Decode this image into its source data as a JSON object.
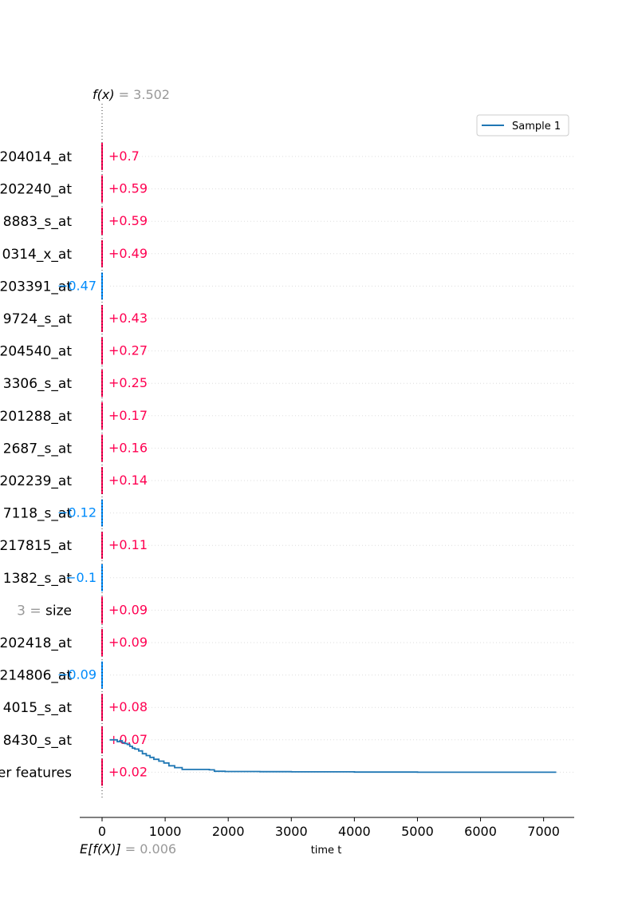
{
  "chart_data": {
    "type": "decision-waterfall",
    "output": {
      "label": "f(x)",
      "eq": " = ",
      "value": "3.502"
    },
    "base": {
      "label": "E[f(X)]",
      "eq": " = ",
      "value": "0.006"
    },
    "xlabel": "time t",
    "xlim": [
      -350,
      7500
    ],
    "xticks": [
      0,
      1000,
      2000,
      3000,
      4000,
      5000,
      6000,
      7000
    ],
    "xtick_labels": [
      "0",
      "1000",
      "2000",
      "3000",
      "4000",
      "5000",
      "6000",
      "7000"
    ],
    "grid": true,
    "legend": {
      "position": "top-right",
      "label": "Sample 1"
    },
    "colors": {
      "positive": "#ff0051",
      "negative": "#008bfb",
      "line": "#1f77b4",
      "muted": "#999999"
    },
    "features": [
      {
        "name": "204014_at",
        "value": "",
        "contrib": 0.7,
        "label": "+0.7"
      },
      {
        "name": "202240_at",
        "value": "",
        "contrib": 0.59,
        "label": "+0.59"
      },
      {
        "name": "8883_s_at",
        "value": "",
        "contrib": 0.59,
        "label": "+0.59"
      },
      {
        "name": "0314_x_at",
        "value": "",
        "contrib": 0.49,
        "label": "+0.49"
      },
      {
        "name": "203391_at",
        "value": "",
        "contrib": -0.47,
        "label": "−0.47"
      },
      {
        "name": "9724_s_at",
        "value": "",
        "contrib": 0.43,
        "label": "+0.43"
      },
      {
        "name": "204540_at",
        "value": "",
        "contrib": 0.27,
        "label": "+0.27"
      },
      {
        "name": "3306_s_at",
        "value": "",
        "contrib": 0.25,
        "label": "+0.25"
      },
      {
        "name": "201288_at",
        "value": "",
        "contrib": 0.17,
        "label": "+0.17"
      },
      {
        "name": "2687_s_at",
        "value": "",
        "contrib": 0.16,
        "label": "+0.16"
      },
      {
        "name": "202239_at",
        "value": "",
        "contrib": 0.14,
        "label": "+0.14"
      },
      {
        "name": "7118_s_at",
        "value": "",
        "contrib": -0.12,
        "label": "−0.12"
      },
      {
        "name": "217815_at",
        "value": "",
        "contrib": 0.11,
        "label": "+0.11"
      },
      {
        "name": "1382_s_at",
        "value": "",
        "contrib": -0.1,
        "label": "−0.1"
      },
      {
        "name": "size",
        "value": "3 = ",
        "contrib": 0.09,
        "label": "+0.09"
      },
      {
        "name": "202418_at",
        "value": "",
        "contrib": 0.09,
        "label": "+0.09"
      },
      {
        "name": "214806_at",
        "value": "",
        "contrib": -0.09,
        "label": "−0.09"
      },
      {
        "name": "4015_s_at",
        "value": "",
        "contrib": 0.08,
        "label": "+0.08"
      },
      {
        "name": "8430_s_at",
        "value": "",
        "contrib": 0.07,
        "label": "+0.07"
      },
      {
        "name": "er features",
        "value": "",
        "contrib": 0.02,
        "label": "+0.02"
      }
    ],
    "series": [
      {
        "name": "Sample 1",
        "points": [
          [
            120,
            1.0
          ],
          [
            200,
            1.0
          ],
          [
            240,
            0.99
          ],
          [
            280,
            0.995
          ],
          [
            320,
            0.985
          ],
          [
            360,
            0.98
          ],
          [
            400,
            0.975
          ],
          [
            440,
            0.965
          ],
          [
            480,
            0.955
          ],
          [
            520,
            0.95
          ],
          [
            580,
            0.94
          ],
          [
            640,
            0.925
          ],
          [
            700,
            0.915
          ],
          [
            760,
            0.905
          ],
          [
            820,
            0.895
          ],
          [
            900,
            0.885
          ],
          [
            980,
            0.875
          ],
          [
            1060,
            0.86
          ],
          [
            1150,
            0.85
          ],
          [
            1270,
            0.84
          ],
          [
            1500,
            0.84
          ],
          [
            1700,
            0.838
          ],
          [
            1780,
            0.83
          ],
          [
            1950,
            0.829
          ],
          [
            2500,
            0.828
          ],
          [
            3000,
            0.827
          ],
          [
            4000,
            0.826
          ],
          [
            5000,
            0.825
          ],
          [
            6000,
            0.825
          ],
          [
            7200,
            0.825
          ]
        ]
      }
    ]
  }
}
